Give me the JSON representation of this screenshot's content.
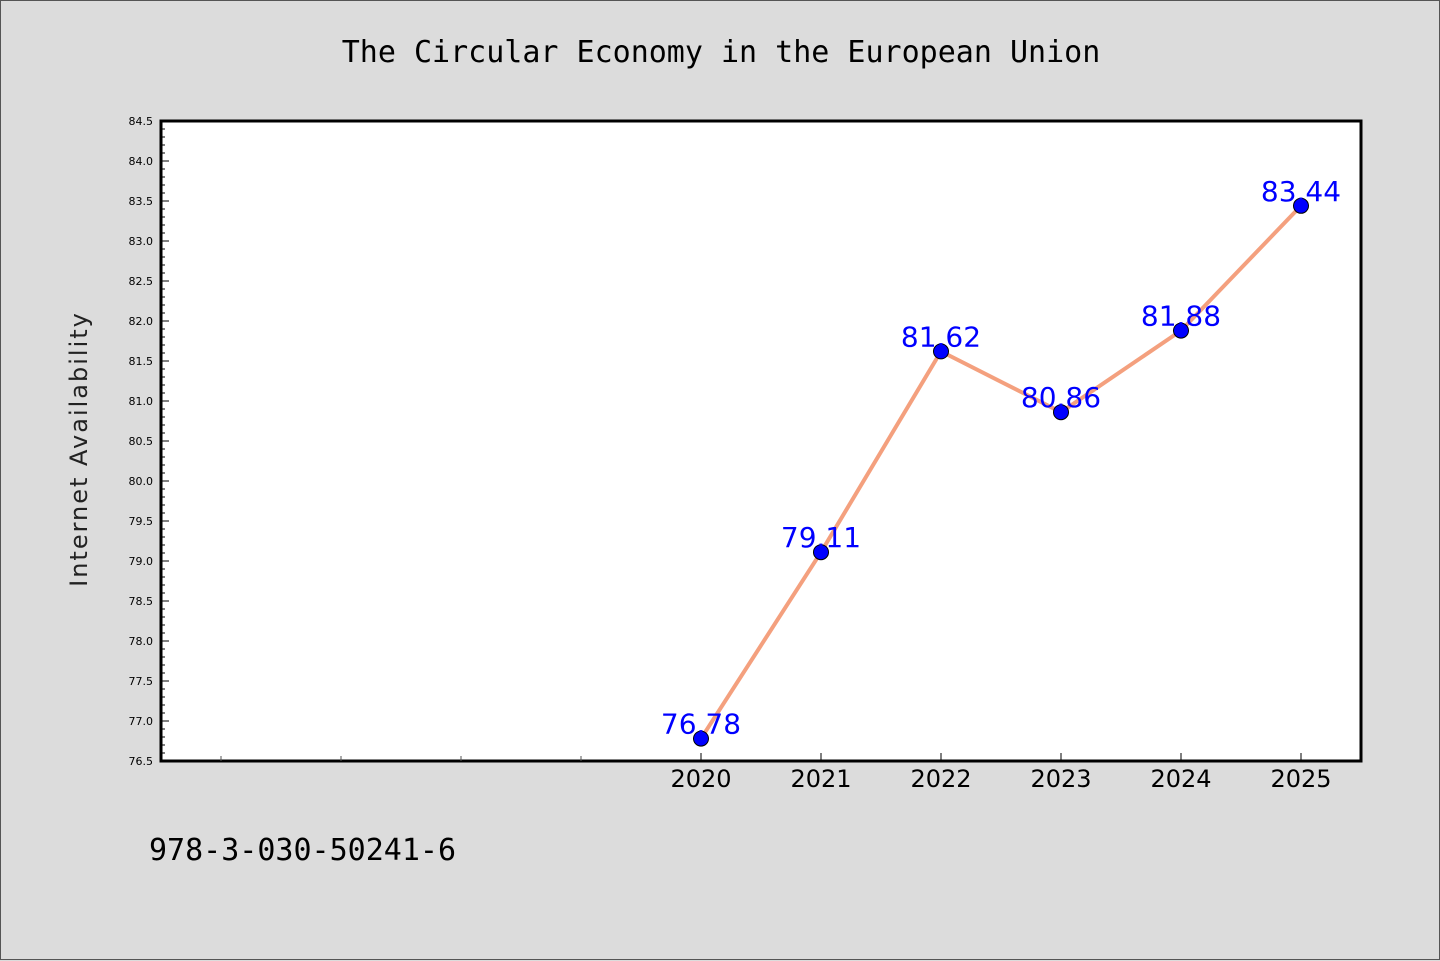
{
  "chart_data": {
    "type": "line",
    "title": "The Circular Economy in the European Union",
    "xlabel": "",
    "ylabel": "Internet Availability",
    "categories": [
      "2020",
      "2021",
      "2022",
      "2023",
      "2024",
      "2025"
    ],
    "series": [
      {
        "values": [
          76.78,
          79.11,
          81.62,
          80.86,
          81.88,
          83.44
        ]
      }
    ],
    "data_labels": [
      "76.78",
      "79.11",
      "81.62",
      "80.86",
      "81.88",
      "83.44"
    ],
    "ylim": [
      76.5,
      84.5
    ],
    "yticks": [
      "76.5",
      "77.0",
      "77.5",
      "78.0",
      "78.5",
      "79.0",
      "79.5",
      "80.0",
      "80.5",
      "81.0",
      "81.5",
      "82.0",
      "82.5",
      "83.0",
      "83.5",
      "84.0",
      "84.5"
    ],
    "grid": false,
    "colors": {
      "line": "#f4a07e",
      "marker": "#0000ff",
      "label": "#0000ff",
      "background": "#dcdcdc",
      "plot": "#ffffff"
    }
  },
  "footer": {
    "isbn": "978-3-030-50241-6"
  }
}
